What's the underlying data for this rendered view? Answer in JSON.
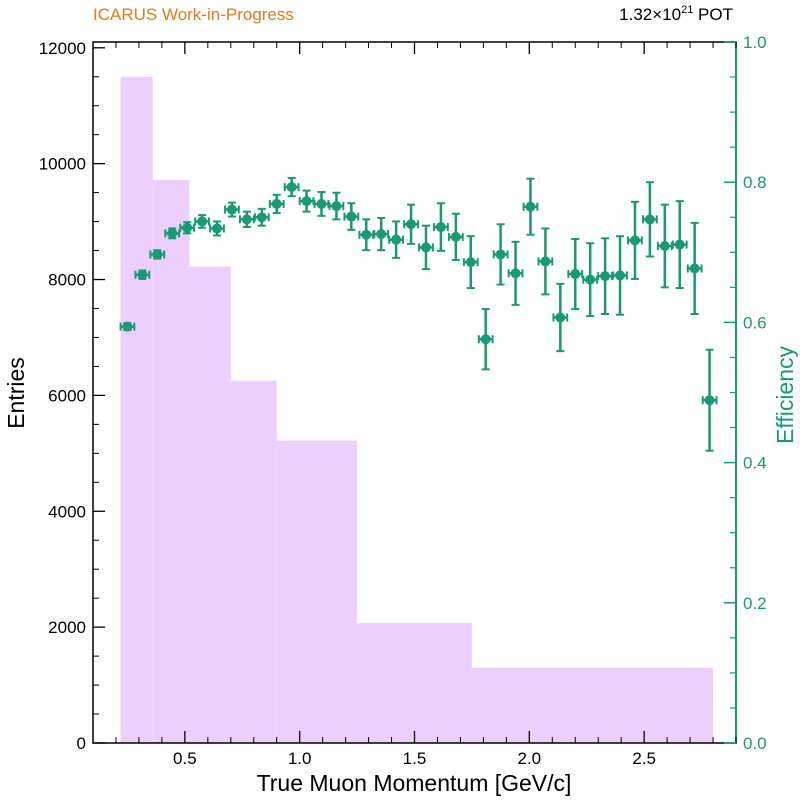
{
  "header": {
    "left_label": "ICARUS Work-in-Progress",
    "pot_base": "1.32×10",
    "pot_exp": "21",
    "pot_unit": " POT"
  },
  "colors": {
    "histogram": "#eccffd",
    "efficiency": "#1a9a74",
    "header_left": "#d97f1c",
    "axis": "#000000"
  },
  "chart_data": {
    "type": "bar",
    "xlabel": "True Muon Momentum [GeV/c]",
    "ylabel": "Entries",
    "y2label": "Efficiency",
    "xlim": [
      0.1,
      2.9
    ],
    "ylim": [
      0,
      12100
    ],
    "y2lim": [
      0,
      1.0
    ],
    "x_ticks": [
      0.5,
      1.0,
      1.5,
      2.0,
      2.5
    ],
    "x_tick_labels": [
      "0.5",
      "1.0",
      "1.5",
      "2.0",
      "2.5"
    ],
    "y_ticks": [
      0,
      2000,
      4000,
      6000,
      8000,
      10000,
      12000
    ],
    "y_tick_labels": [
      "0",
      "2000",
      "4000",
      "6000",
      "8000",
      "10000",
      "12000"
    ],
    "y2_ticks": [
      0.0,
      0.2,
      0.4,
      0.6,
      0.8,
      1.0
    ],
    "y2_tick_labels": [
      "0.0",
      "0.2",
      "0.4",
      "0.6",
      "0.8",
      "1.0"
    ],
    "histogram": {
      "bins": [
        {
          "low": 0.22,
          "high": 0.36,
          "value": 11500
        },
        {
          "low": 0.36,
          "high": 0.52,
          "value": 9720
        },
        {
          "low": 0.52,
          "high": 0.7,
          "value": 8220
        },
        {
          "low": 0.7,
          "high": 0.9,
          "value": 6250
        },
        {
          "low": 0.9,
          "high": 1.25,
          "value": 5220
        },
        {
          "low": 1.25,
          "high": 1.75,
          "value": 2070
        },
        {
          "low": 1.75,
          "high": 2.8,
          "value": 1300
        }
      ]
    },
    "efficiency": {
      "points": [
        {
          "x": 0.25,
          "y": 0.594,
          "yerr": 0.005
        },
        {
          "x": 0.315,
          "y": 0.668,
          "yerr": 0.006
        },
        {
          "x": 0.38,
          "y": 0.697,
          "yerr": 0.006
        },
        {
          "x": 0.445,
          "y": 0.727,
          "yerr": 0.007
        },
        {
          "x": 0.51,
          "y": 0.735,
          "yerr": 0.008
        },
        {
          "x": 0.575,
          "y": 0.744,
          "yerr": 0.009
        },
        {
          "x": 0.64,
          "y": 0.734,
          "yerr": 0.01
        },
        {
          "x": 0.705,
          "y": 0.761,
          "yerr": 0.01
        },
        {
          "x": 0.77,
          "y": 0.747,
          "yerr": 0.011
        },
        {
          "x": 0.835,
          "y": 0.75,
          "yerr": 0.012
        },
        {
          "x": 0.9,
          "y": 0.769,
          "yerr": 0.013
        },
        {
          "x": 0.965,
          "y": 0.793,
          "yerr": 0.013
        },
        {
          "x": 1.03,
          "y": 0.773,
          "yerr": 0.015
        },
        {
          "x": 1.095,
          "y": 0.769,
          "yerr": 0.017
        },
        {
          "x": 1.16,
          "y": 0.766,
          "yerr": 0.019
        },
        {
          "x": 1.225,
          "y": 0.751,
          "yerr": 0.019
        },
        {
          "x": 1.29,
          "y": 0.725,
          "yerr": 0.022
        },
        {
          "x": 1.355,
          "y": 0.726,
          "yerr": 0.023
        },
        {
          "x": 1.42,
          "y": 0.718,
          "yerr": 0.026
        },
        {
          "x": 1.485,
          "y": 0.74,
          "yerr": 0.028
        },
        {
          "x": 1.55,
          "y": 0.707,
          "yerr": 0.031
        },
        {
          "x": 1.615,
          "y": 0.736,
          "yerr": 0.034
        },
        {
          "x": 1.68,
          "y": 0.722,
          "yerr": 0.033
        },
        {
          "x": 1.745,
          "y": 0.686,
          "yerr": 0.037
        },
        {
          "x": 1.81,
          "y": 0.576,
          "yerr": 0.043
        },
        {
          "x": 1.875,
          "y": 0.697,
          "yerr": 0.043
        },
        {
          "x": 1.94,
          "y": 0.67,
          "yerr": 0.045
        },
        {
          "x": 2.005,
          "y": 0.765,
          "yerr": 0.04
        },
        {
          "x": 2.07,
          "y": 0.687,
          "yerr": 0.047
        },
        {
          "x": 2.135,
          "y": 0.607,
          "yerr": 0.048
        },
        {
          "x": 2.2,
          "y": 0.669,
          "yerr": 0.05
        },
        {
          "x": 2.265,
          "y": 0.661,
          "yerr": 0.052
        },
        {
          "x": 2.33,
          "y": 0.666,
          "yerr": 0.054
        },
        {
          "x": 2.395,
          "y": 0.667,
          "yerr": 0.056
        },
        {
          "x": 2.46,
          "y": 0.717,
          "yerr": 0.055
        },
        {
          "x": 2.525,
          "y": 0.747,
          "yerr": 0.053
        },
        {
          "x": 2.59,
          "y": 0.709,
          "yerr": 0.059
        },
        {
          "x": 2.655,
          "y": 0.711,
          "yerr": 0.062
        },
        {
          "x": 2.72,
          "y": 0.677,
          "yerr": 0.065
        },
        {
          "x": 2.785,
          "y": 0.489,
          "yerr": 0.072
        }
      ],
      "xerr": 0.03
    }
  }
}
